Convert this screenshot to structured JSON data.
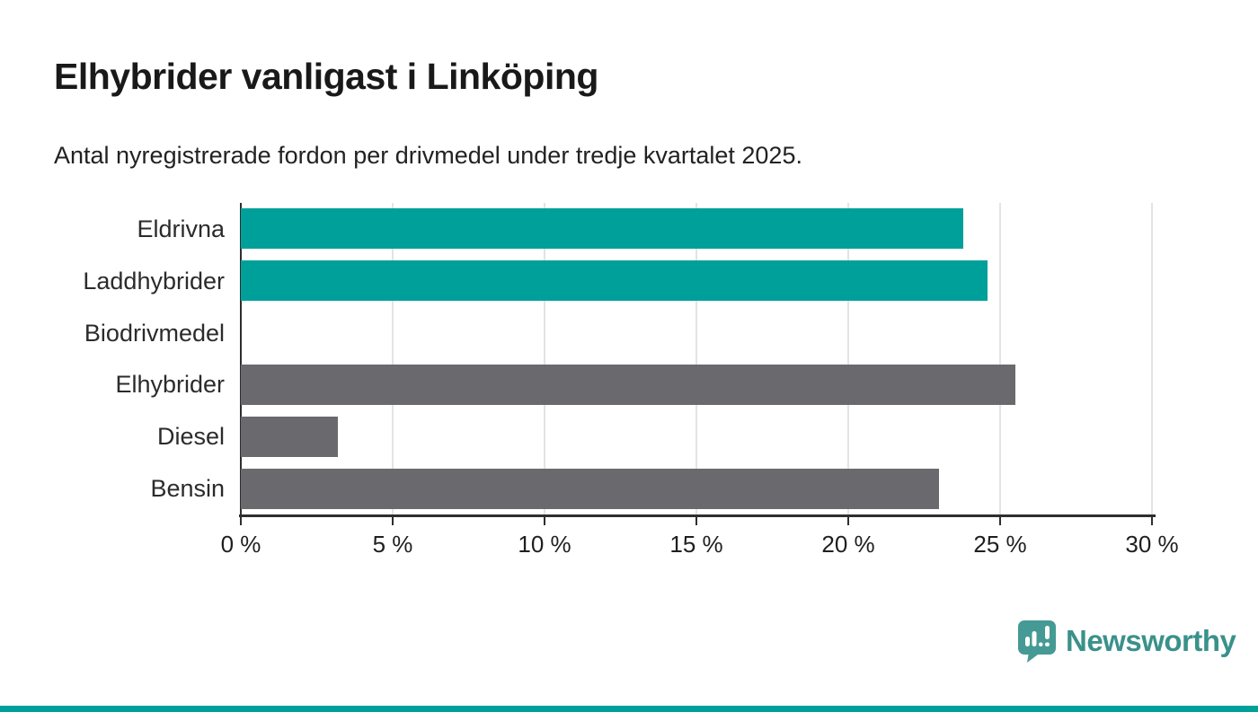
{
  "header": {
    "title": "Elhybrider vanligast i Linköping",
    "subtitle": "Antal nyregistrerade fordon per drivmedel under tredje kvartalet 2025."
  },
  "chart_data": {
    "type": "bar",
    "orientation": "horizontal",
    "title": "Elhybrider vanligast i Linköping",
    "subtitle": "Antal nyregistrerade fordon per drivmedel under tredje kvartalet 2025.",
    "categories": [
      "Eldrivna",
      "Laddhybrider",
      "Biodrivmedel",
      "Elhybrider",
      "Diesel",
      "Bensin"
    ],
    "values": [
      23.8,
      24.6,
      0,
      25.5,
      3.2,
      23.0
    ],
    "value_unit": "%",
    "bar_colors": [
      "#00A09A",
      "#00A09A",
      "#00A09A",
      "#6A6A6E",
      "#6A6A6E",
      "#6A6A6E"
    ],
    "xlabel": "",
    "ylabel": "",
    "xlim": [
      0,
      30
    ],
    "x_ticks": [
      {
        "value": 0,
        "label": "0 %"
      },
      {
        "value": 5,
        "label": "5 %"
      },
      {
        "value": 10,
        "label": "10 %"
      },
      {
        "value": 15,
        "label": "15 %"
      },
      {
        "value": 20,
        "label": "20 %"
      },
      {
        "value": 25,
        "label": "25 %"
      },
      {
        "value": 30,
        "label": "30 %"
      }
    ],
    "grid": "vertical",
    "legend": "none"
  },
  "branding": {
    "logo_text": "Newsworthy",
    "logo_icon": "newsworthy-speech-bubble-bar-chart-icon",
    "logo_icon_color": "#459A95",
    "logo_text_color": "#3A918B"
  },
  "colors": {
    "highlight_teal": "#00A09A",
    "neutral_gray": "#6A6A6E",
    "gridline": "#E3E3E3",
    "axis": "#2E2E2E",
    "background": "#FFFFFF",
    "bottom_strip": "#00A09A"
  }
}
